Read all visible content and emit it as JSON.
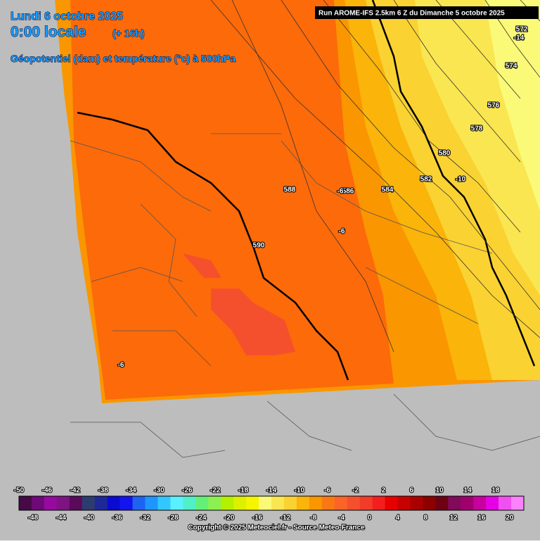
{
  "header": {
    "date": "Lundi 6 octobre 2025",
    "time": "0:00 locale",
    "lead": "(+ 16h)",
    "parameter": "Géopotentiel (dam) et température (°c) à 500hPa",
    "run": "Run AROME-IFS 2.5km 6 Z du Dimanche 5 octobre 2025"
  },
  "contour_labels": [
    "572",
    "-14",
    "574",
    "576",
    "578",
    "580",
    "582",
    "-10",
    "584",
    "586",
    "-6",
    "588",
    "-6",
    "590",
    "-6"
  ],
  "colorbar": {
    "top_labels": [
      "-50",
      "-46",
      "-42",
      "-38",
      "-34",
      "-30",
      "-26",
      "-22",
      "-18",
      "-14",
      "-10",
      "-6",
      "-2",
      "2",
      "6",
      "10",
      "14",
      "18"
    ],
    "bottom_labels": [
      "-48",
      "-44",
      "-40",
      "-36",
      "-32",
      "-28",
      "-24",
      "-20",
      "-16",
      "-12",
      "-8",
      "-4",
      "0",
      "4",
      "8",
      "12",
      "16",
      "20"
    ],
    "colors": [
      "#460a46",
      "#6e0a78",
      "#960aa0",
      "#7d1482",
      "#5a0a5a",
      "#2d3c6e",
      "#1e2896",
      "#0a0ad2",
      "#1414f0",
      "#1e64f0",
      "#1e96ff",
      "#32c8ff",
      "#5af0ff",
      "#50f0c8",
      "#64f078",
      "#8cf050",
      "#b4f000",
      "#dcf000",
      "#f5f500",
      "#fafa78",
      "#fae650",
      "#fad232",
      "#fab40a",
      "#fa9600",
      "#fa7814",
      "#fa6428",
      "#f5502d",
      "#f03c28",
      "#f51e1e",
      "#e60000",
      "#c80000",
      "#aa0000",
      "#8c0000",
      "#6e0014",
      "#820a5a",
      "#a0006e",
      "#c800a0",
      "#e600e6",
      "#f050f0",
      "#fa82fa"
    ]
  },
  "copyright": "Copyright © 2025 Meteociel.fr - Source Meteo-France"
}
